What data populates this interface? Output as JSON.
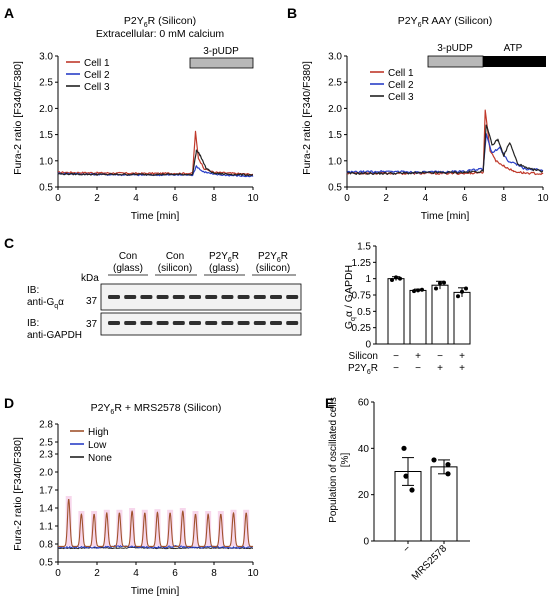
{
  "figure": {
    "panels": {
      "A": {
        "letter": "A",
        "title_prefix": "P2Y",
        "title_sub": "6",
        "title_suffix": "R (Silicon)",
        "subtitle": "Extracellular: 0 mM calcium",
        "stim_label": "3-pUDP",
        "ylabel": "Fura-2 ratio [F340/F380]",
        "xlabel": "Time [min]",
        "legend": [
          "Cell 1",
          "Cell 2",
          "Cell 3"
        ]
      },
      "B": {
        "letter": "B",
        "title_prefix": "P2Y",
        "title_sub": "6",
        "title_suffix": "R AAY (Silicon)",
        "stim1_label": "3-pUDP",
        "stim2_label": "ATP",
        "ylabel": "Fura-2 ratio [F340/F380]",
        "xlabel": "Time [min]",
        "legend": [
          "Cell 1",
          "Cell 2",
          "Cell 3"
        ]
      },
      "C": {
        "letter": "C",
        "kda": "kDa",
        "groups": [
          {
            "l1": "Con",
            "l2": "(glass)"
          },
          {
            "l1": "Con",
            "l2": "(silicon)"
          },
          {
            "l1": "P2Y6R",
            "l2": "(glass)"
          },
          {
            "l1": "P2Y6R",
            "l2": "(silicon)"
          }
        ],
        "ib1_line1": "IB:",
        "ib1_line2": "anti-Gqα",
        "ib2_line1": "IB:",
        "ib2_line2": "anti-GAPDH",
        "marker": "37",
        "bar_ylabel": "Gqα / GAPDH",
        "silicon_label": "Silicon",
        "p2y_label": "P2Y6R",
        "silicon_signs": [
          "−",
          "+",
          "−",
          "+"
        ],
        "p2y_signs": [
          "−",
          "−",
          "+",
          "+"
        ]
      },
      "D": {
        "letter": "D",
        "title": "P2Y6R + MRS2578 (Silicon)",
        "ylabel": "Fura-2 ratio [F340/F380]",
        "xlabel": "Time [min]",
        "legend": [
          "High",
          "Low",
          "None"
        ]
      },
      "E": {
        "letter": "E",
        "ylabel": "Population of oscillated cells [%]",
        "categories": [
          "−",
          "MRS2578"
        ]
      }
    },
    "colors": {
      "cell1": "#c0392b",
      "cell2": "#2a3fc7",
      "cell3": "#222222",
      "high": "#a0522d",
      "low": "#2a3fc7",
      "none": "#222222",
      "shade": "#f4c6e4",
      "stim_grey": "#b8b8b8",
      "stim_black": "#000000"
    }
  },
  "chart_data": [
    {
      "type": "line",
      "panel": "A",
      "x_range": [
        0,
        10
      ],
      "ylim": [
        0.5,
        3.0
      ],
      "x_ticks": [
        0,
        2,
        4,
        6,
        8,
        10
      ],
      "y_ticks": [
        0.5,
        1.0,
        1.5,
        2.0,
        2.5,
        3.0
      ],
      "stimulus": {
        "label": "3-pUDP",
        "start": 7,
        "end": 10
      },
      "series": [
        {
          "name": "Cell 1",
          "x": [
            0,
            2,
            4,
            6,
            6.9,
            7.05,
            7.2,
            7.5,
            8,
            9,
            10
          ],
          "y": [
            0.78,
            0.77,
            0.76,
            0.76,
            0.76,
            1.55,
            1.05,
            0.85,
            0.78,
            0.76,
            0.74
          ]
        },
        {
          "name": "Cell 2",
          "x": [
            0,
            2,
            4,
            6,
            6.9,
            7.1,
            7.4,
            8,
            9,
            10
          ],
          "y": [
            0.76,
            0.74,
            0.73,
            0.73,
            0.73,
            0.9,
            0.8,
            0.74,
            0.72,
            0.7
          ]
        },
        {
          "name": "Cell 3",
          "x": [
            0,
            2,
            4,
            6,
            6.9,
            7.1,
            7.3,
            7.6,
            8,
            9,
            10
          ],
          "y": [
            0.75,
            0.74,
            0.74,
            0.74,
            0.74,
            1.2,
            1.1,
            0.85,
            0.76,
            0.74,
            0.73
          ]
        }
      ]
    },
    {
      "type": "line",
      "panel": "B",
      "x_range": [
        0,
        10
      ],
      "ylim": [
        0.5,
        3.0
      ],
      "x_ticks": [
        0,
        2,
        4,
        6,
        8,
        10
      ],
      "y_ticks": [
        0.5,
        1.0,
        1.5,
        2.0,
        2.5,
        3.0
      ],
      "stimulus": [
        {
          "label": "3-pUDP",
          "start": 4,
          "end": 7
        },
        {
          "label": "ATP",
          "start": 7,
          "end": 10
        }
      ],
      "series": [
        {
          "name": "Cell 1",
          "x": [
            0,
            2,
            4,
            6,
            6.95,
            7.05,
            7.3,
            7.6,
            8,
            8.5,
            9,
            10
          ],
          "y": [
            0.77,
            0.76,
            0.76,
            0.76,
            0.78,
            1.95,
            1.2,
            1.0,
            0.9,
            0.8,
            0.77,
            0.75
          ]
        },
        {
          "name": "Cell 2",
          "x": [
            0,
            2,
            4,
            6,
            6.95,
            7.1,
            7.4,
            7.8,
            8.2,
            8.6,
            9,
            10
          ],
          "y": [
            0.78,
            0.8,
            0.78,
            0.8,
            0.85,
            1.5,
            1.15,
            1.25,
            1.0,
            0.95,
            0.85,
            0.82
          ]
        },
        {
          "name": "Cell 3",
          "x": [
            0,
            2,
            4,
            6,
            6.95,
            7.1,
            7.4,
            7.7,
            8.0,
            8.3,
            8.7,
            9.2,
            10
          ],
          "y": [
            0.76,
            0.76,
            0.77,
            0.78,
            0.8,
            1.7,
            1.3,
            1.4,
            1.1,
            1.35,
            0.95,
            0.85,
            0.8
          ]
        }
      ]
    },
    {
      "type": "bar",
      "panel": "C",
      "categories": [
        "Con glass",
        "Con silicon",
        "P2Y6R glass",
        "P2Y6R silicon"
      ],
      "values": [
        1.0,
        0.82,
        0.9,
        0.79
      ],
      "errors": [
        0.03,
        0.02,
        0.06,
        0.07
      ],
      "points": [
        [
          0.98,
          1.02,
          1.0
        ],
        [
          0.81,
          0.82,
          0.83
        ],
        [
          0.85,
          0.93,
          0.94
        ],
        [
          0.73,
          0.8,
          0.85
        ]
      ],
      "ylim": [
        0,
        1.5
      ],
      "y_ticks": [
        0,
        0.25,
        0.5,
        0.75,
        1.0,
        1.25,
        1.5
      ]
    },
    {
      "type": "line",
      "panel": "D",
      "x_range": [
        0,
        10
      ],
      "ylim": [
        0.5,
        2.8
      ],
      "x_ticks": [
        0,
        2,
        4,
        6,
        8,
        10
      ],
      "y_ticks": [
        0.5,
        0.8,
        1.1,
        1.4,
        1.7,
        2.0,
        2.3,
        2.5,
        2.8
      ],
      "series": [
        {
          "name": "High",
          "baseline": 0.76,
          "peaks_x": [
            0.55,
            1.2,
            1.85,
            2.5,
            3.15,
            3.8,
            4.45,
            5.1,
            5.75,
            6.4,
            7.05,
            7.7,
            8.35,
            9.0,
            9.65
          ],
          "peaks_y": [
            1.55,
            1.3,
            1.3,
            1.32,
            1.32,
            1.35,
            1.32,
            1.33,
            1.32,
            1.35,
            1.3,
            1.3,
            1.3,
            1.32,
            1.32
          ]
        },
        {
          "name": "Low",
          "x": [
            0,
            1,
            2,
            3,
            4,
            5,
            6,
            7,
            8,
            9,
            10
          ],
          "y": [
            0.74,
            0.75,
            0.74,
            0.76,
            0.75,
            0.74,
            0.76,
            0.74,
            0.75,
            0.74,
            0.75
          ]
        },
        {
          "name": "None",
          "x": [
            0,
            1,
            2,
            3,
            4,
            5,
            6,
            7,
            8,
            9,
            10
          ],
          "y": [
            0.73,
            0.73,
            0.74,
            0.73,
            0.74,
            0.73,
            0.73,
            0.74,
            0.73,
            0.73,
            0.73
          ]
        }
      ]
    },
    {
      "type": "bar",
      "panel": "E",
      "categories": [
        "−",
        "MRS2578"
      ],
      "values": [
        30,
        32
      ],
      "errors": [
        6,
        3
      ],
      "points": [
        [
          40,
          22,
          28
        ],
        [
          35,
          33,
          29
        ]
      ],
      "ylim": [
        0,
        60
      ],
      "y_ticks": [
        0,
        20,
        40,
        60
      ]
    }
  ]
}
